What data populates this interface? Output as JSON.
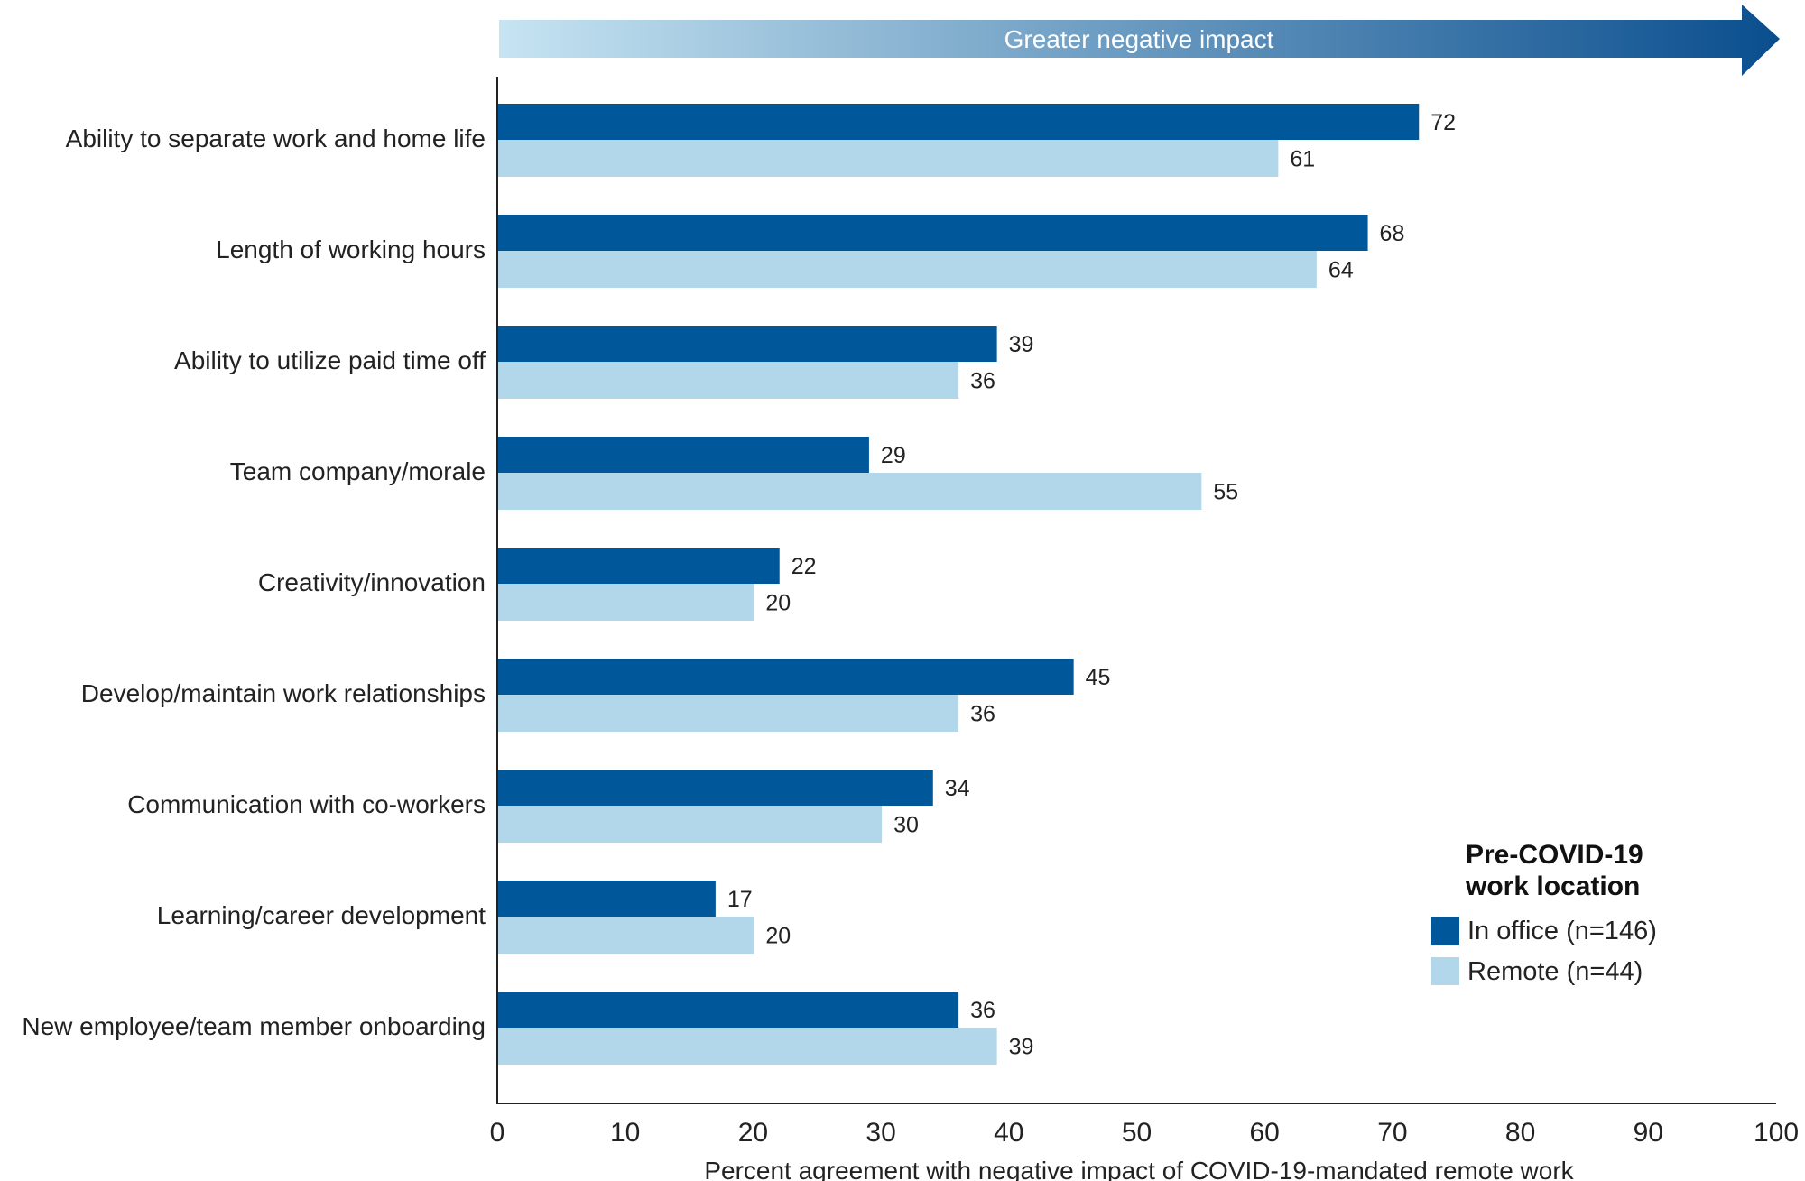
{
  "chart_data": {
    "type": "bar",
    "orientation": "horizontal",
    "banner": "Greater negative impact",
    "categories": [
      "Ability to separate work and home life",
      "Length of working hours",
      "Ability to utilize paid time off",
      "Team company/morale",
      "Creativity/innovation",
      "Develop/maintain work relationships",
      "Communication with co-workers",
      "Learning/career development",
      "New employee/team member onboarding"
    ],
    "series": [
      {
        "name": "In office (n=146)",
        "color": "#00579a",
        "values": [
          72,
          68,
          39,
          29,
          22,
          45,
          34,
          17,
          36
        ]
      },
      {
        "name": "Remote (n=44)",
        "color": "#b3d7ea",
        "values": [
          61,
          64,
          36,
          55,
          20,
          36,
          30,
          20,
          39
        ]
      }
    ],
    "xlabel": "Percent agreement with negative impact of COVID-19-mandated remote work",
    "xlim": [
      0,
      100
    ],
    "xticks": [
      "0",
      "10",
      "20",
      "30",
      "40",
      "50",
      "60",
      "70",
      "80",
      "90",
      "100"
    ],
    "legend": {
      "title_line1": "Pre-COVID-19",
      "title_line2": "work location",
      "placement": "bottom-right"
    },
    "grid": false
  }
}
